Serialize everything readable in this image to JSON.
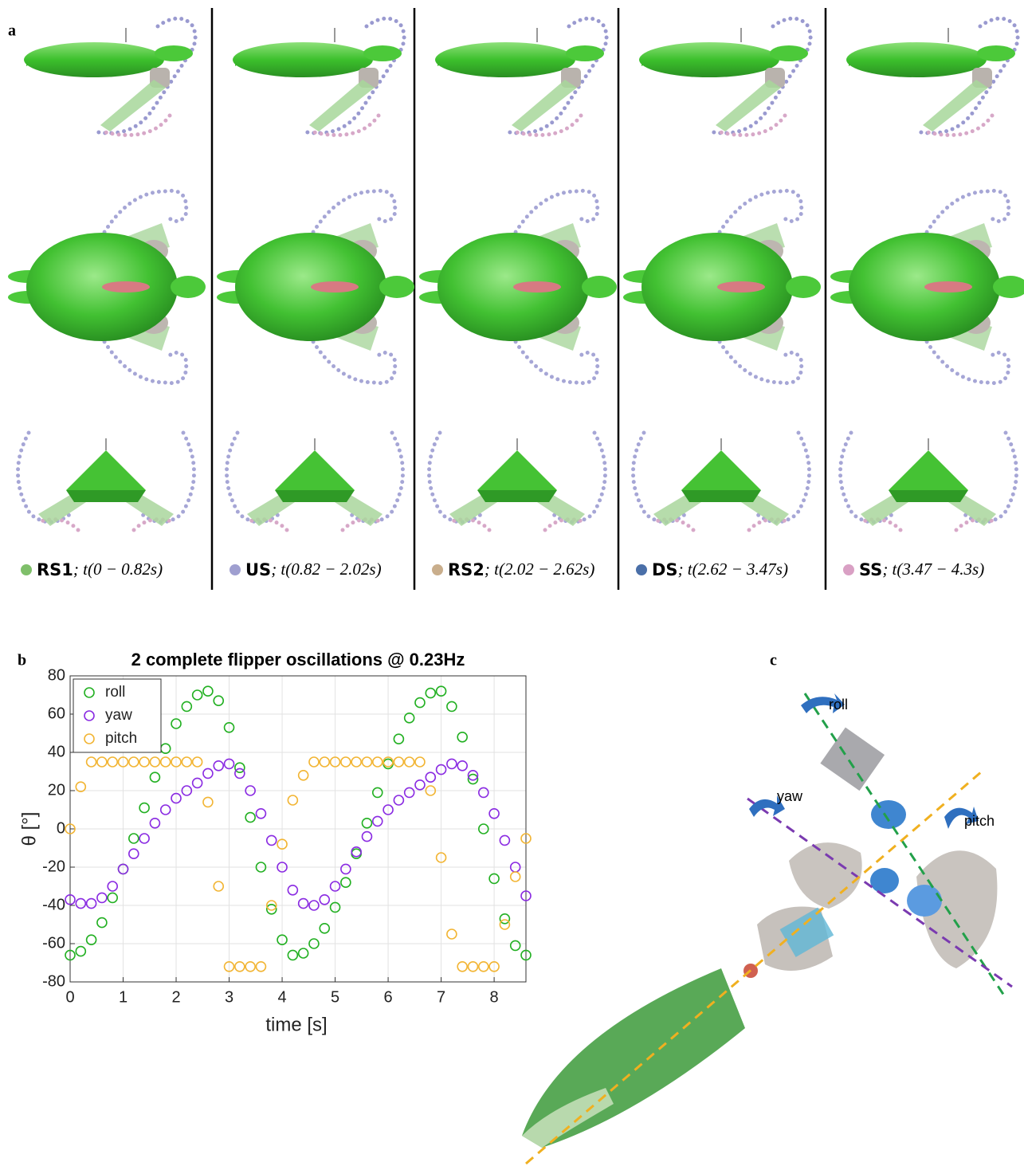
{
  "panel_a": {
    "label": "a",
    "phases": [
      {
        "name": "RS1",
        "time": "; t(0 − 0.82s)",
        "color": "#7fbf6a"
      },
      {
        "name": "US",
        "time": "; t(0.82 − 2.02s)",
        "color": "#9f9fd0"
      },
      {
        "name": "RS2",
        "time": "; t(2.02 − 2.62s)",
        "color": "#c9ae8c"
      },
      {
        "name": "DS",
        "time": "; t(2.62 − 3.47s)",
        "color": "#4a6fa8"
      },
      {
        "name": "SS",
        "time": "; t(3.47 − 4.3s)",
        "color": "#d9a0c4"
      }
    ]
  },
  "panel_b_label": "b",
  "chart_data": {
    "type": "scatter",
    "title": "2 complete flipper oscillations @ 0.23Hz",
    "x_label": "time [s]",
    "y_label": "θ [°]",
    "x": [
      0,
      0.2,
      0.4,
      0.6,
      0.8,
      1.0,
      1.2,
      1.4,
      1.6,
      1.8,
      2.0,
      2.2,
      2.4,
      2.6,
      2.8,
      3.0,
      3.2,
      3.4,
      3.6,
      3.8,
      4.0,
      4.2,
      4.4,
      4.6,
      4.8,
      5.0,
      5.2,
      5.4,
      5.6,
      5.8,
      6.0,
      6.2,
      6.4,
      6.6,
      6.8,
      7.0,
      7.2,
      7.4,
      7.6,
      7.8,
      8.0,
      8.2,
      8.4,
      8.6
    ],
    "series": [
      {
        "name": "roll",
        "color": "#22b022",
        "values": [
          -66,
          -64,
          -58,
          -49,
          -36,
          -21,
          -5,
          11,
          27,
          42,
          55,
          64,
          70,
          72,
          67,
          53,
          32,
          6,
          -20,
          -42,
          -58,
          -66,
          -65,
          -60,
          -52,
          -41,
          -28,
          -13,
          3,
          19,
          34,
          47,
          58,
          66,
          71,
          72,
          64,
          48,
          26,
          0,
          -26,
          -47,
          -61,
          -66
        ]
      },
      {
        "name": "yaw",
        "color": "#8a2be2",
        "values": [
          -37,
          -39,
          -39,
          -36,
          -30,
          -21,
          -13,
          -5,
          3,
          10,
          16,
          20,
          24,
          29,
          33,
          34,
          29,
          20,
          8,
          -6,
          -20,
          -32,
          -39,
          -40,
          -37,
          -30,
          -21,
          -12,
          -4,
          4,
          10,
          15,
          19,
          23,
          27,
          31,
          34,
          33,
          28,
          19,
          8,
          -6,
          -20,
          -35
        ]
      },
      {
        "name": "pitch",
        "color": "#f2b534",
        "values": [
          0,
          22,
          35,
          35,
          35,
          35,
          35,
          35,
          35,
          35,
          35,
          35,
          35,
          14,
          -30,
          -72,
          -72,
          -72,
          -72,
          -40,
          -8,
          15,
          28,
          35,
          35,
          35,
          35,
          35,
          35,
          35,
          35,
          35,
          35,
          35,
          20,
          -15,
          -55,
          -72,
          -72,
          -72,
          -72,
          -50,
          -25,
          -5
        ]
      }
    ],
    "xlim": [
      0,
      8.6
    ],
    "ylim": [
      -80,
      80
    ],
    "xticks": [
      0,
      1,
      2,
      3,
      4,
      5,
      6,
      7,
      8
    ],
    "yticks": [
      -80,
      -60,
      -40,
      -20,
      0,
      20,
      40,
      60,
      80
    ],
    "grid": true,
    "legend": "upper left"
  },
  "panel_c": {
    "label": "c",
    "axes": [
      "roll",
      "yaw",
      "pitch"
    ]
  }
}
